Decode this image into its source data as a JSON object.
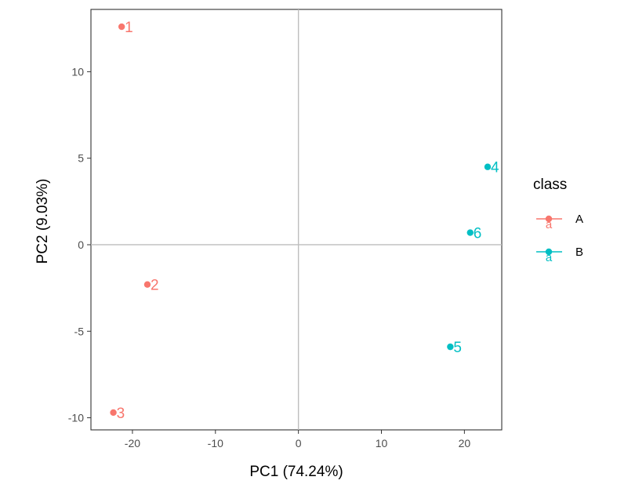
{
  "chart_data": {
    "type": "scatter",
    "xlabel": "PC1 (74.24%)",
    "ylabel": "PC2 (9.03%)",
    "xlim": [
      -25,
      24.5
    ],
    "ylim": [
      -10.7,
      13.6
    ],
    "x_ticks": [
      -20,
      -10,
      0,
      10,
      20
    ],
    "y_ticks": [
      -10,
      -5,
      0,
      5,
      10
    ],
    "x_tick_labels": [
      "-20",
      "-10",
      "0",
      "10",
      "20"
    ],
    "y_tick_labels": [
      "-10",
      "-5",
      "0",
      "5",
      "10"
    ],
    "reference_lines": {
      "x": 0,
      "y": 0
    },
    "grid": false,
    "legend": {
      "title": "class",
      "position": "right",
      "key_glyph": "a",
      "entries": [
        {
          "label": "A",
          "color": "#F8766D"
        },
        {
          "label": "B",
          "color": "#00BFC4"
        }
      ]
    },
    "points": [
      {
        "label": "1",
        "class": "A",
        "x": -21.3,
        "y": 12.6
      },
      {
        "label": "2",
        "class": "A",
        "x": -18.2,
        "y": -2.3
      },
      {
        "label": "3",
        "class": "A",
        "x": -22.3,
        "y": -9.7
      },
      {
        "label": "4",
        "class": "B",
        "x": 22.8,
        "y": 4.5
      },
      {
        "label": "5",
        "class": "B",
        "x": 18.3,
        "y": -5.9
      },
      {
        "label": "6",
        "class": "B",
        "x": 20.7,
        "y": 0.7
      }
    ]
  }
}
